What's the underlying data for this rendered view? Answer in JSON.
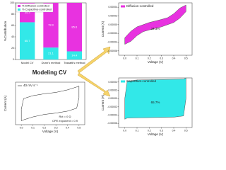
{
  "chart_data": [
    {
      "type": "bar",
      "ylabel": "%Contribution",
      "categories": [
        "Model CV",
        "Dunn's method",
        "Trasatti's method"
      ],
      "series": [
        {
          "name": "% Diffusion-controlled",
          "color": "#e832e0",
          "values": [
            34.3,
            78.9,
            85.6
          ]
        },
        {
          "name": "% Capacitive-controlled",
          "color": "#32e8e8",
          "values": [
            65.7,
            21.1,
            14.4
          ]
        }
      ],
      "ylim": [
        0,
        100
      ],
      "yticks": [
        0,
        20,
        40,
        60,
        80,
        100
      ]
    },
    {
      "type": "area",
      "xlabel": "Voltage (V)",
      "ylabel": "Current (A)",
      "annotation": "34.3%",
      "x": [
        0,
        0.05,
        0.1,
        0.2,
        0.3,
        0.35,
        0.4,
        0.45,
        0.5,
        0.5,
        0.45,
        0.4,
        0.3,
        0.2,
        0.15,
        0.1,
        0.05,
        0,
        0
      ],
      "series": [
        {
          "name": "Diffusion-controlled",
          "color": "#e832e0",
          "values": [
            -3e-05,
            -1.5e-05,
            -5e-06,
            5e-06,
            1.2e-05,
            1.6e-05,
            2.5e-05,
            3.8e-05,
            4.5e-05,
            3e-05,
            1.5e-05,
            5e-06,
            -5e-06,
            -1.2e-05,
            -1.6e-05,
            -2.5e-05,
            -3.8e-05,
            -4.5e-05,
            -3e-05
          ]
        }
      ],
      "xlim": [
        -0.05,
        0.55
      ],
      "xticks": [
        {
          "value": 0,
          "label": "0.0"
        },
        0.1,
        0.2,
        0.3,
        0.4,
        0.5
      ],
      "ylim": [
        -7e-05,
        5e-05
      ],
      "yticks": [
        4e-05,
        2e-05,
        {
          "value": 0,
          "label": "0.00000"
        },
        -2e-05,
        -4e-05,
        -6e-05
      ]
    },
    {
      "type": "line",
      "xlabel": "Voltage (V)",
      "ylabel": "Current (A)",
      "annotations": [
        "Rct = 0 Ω",
        "CPE exponent = 0.9"
      ],
      "x": [
        0,
        0.02,
        0.1,
        0.2,
        0.3,
        0.4,
        0.48,
        0.5,
        0.5,
        0.48,
        0.4,
        0.3,
        0.2,
        0.1,
        0.02,
        0,
        0
      ],
      "series": [
        {
          "name": "40 mV s⁻¹",
          "color": "#222222",
          "values": [
            -3e-05,
            2.5e-05,
            4e-05,
            5e-05,
            5.7e-05,
            7e-05,
            8.5e-05,
            9e-05,
            3e-05,
            -2.5e-05,
            -4e-05,
            -5e-05,
            -5.7e-05,
            -7e-05,
            -8.5e-05,
            -9e-05,
            -3e-05
          ]
        }
      ],
      "xlim": [
        -0.05,
        0.55
      ],
      "xticks": [
        {
          "value": 0,
          "label": "0.0"
        },
        0.1,
        0.2,
        0.3,
        0.4,
        0.5
      ],
      "ylim": [
        -0.00011,
        0.00011
      ]
    },
    {
      "type": "area",
      "xlabel": "Voltage (V)",
      "ylabel": "Current (A)",
      "annotation": "65.7%",
      "x": [
        0,
        0.02,
        0.1,
        0.48,
        0.5,
        0.5,
        0.48,
        0.4,
        0.02,
        0,
        0
      ],
      "series": [
        {
          "name": "Capacitive-controlled",
          "color": "#32e8e8",
          "values": [
            0,
            4.2e-05,
            4.5e-05,
            4.7e-05,
            5e-05,
            0,
            -4.2e-05,
            -4.5e-05,
            -4.7e-05,
            -5e-05,
            0
          ]
        }
      ],
      "xlim": [
        -0.05,
        0.55
      ],
      "xticks": [
        {
          "value": 0,
          "label": "0.0"
        },
        0.1,
        0.2,
        0.3,
        0.4,
        0.5
      ],
      "ylim": [
        -7e-05,
        5e-05
      ],
      "yticks": [
        4e-05,
        2e-05,
        {
          "value": 0,
          "label": "0.00000"
        },
        -2e-05,
        -4e-05,
        -6e-05
      ]
    }
  ],
  "label": "Modeling CV"
}
